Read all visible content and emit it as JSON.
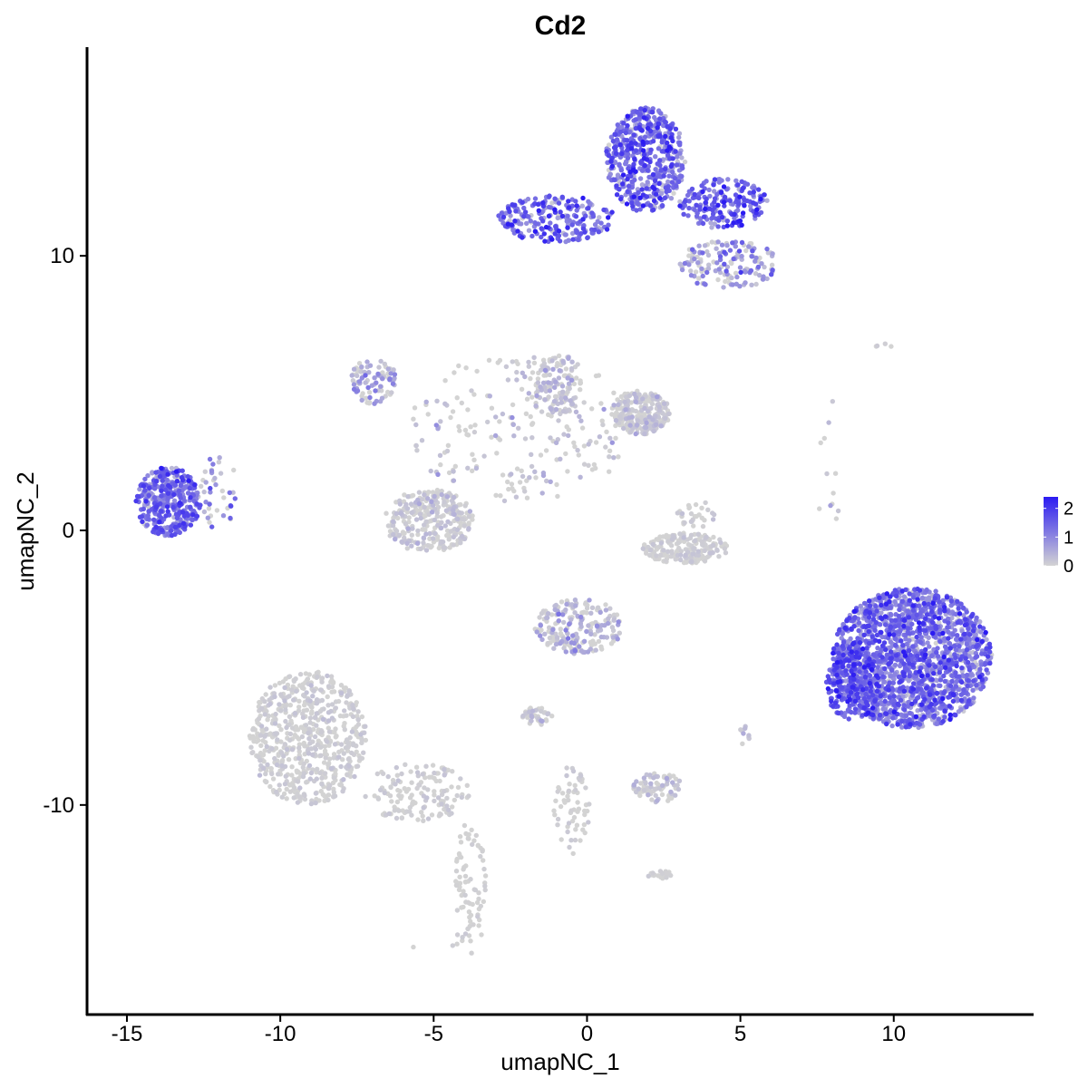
{
  "chart_data": {
    "type": "scatter",
    "title": "Cd2",
    "xlabel": "umapNC_1",
    "ylabel": "umapNC_2",
    "xlim": [
      -16.3,
      14.5
    ],
    "ylim": [
      -17.6,
      17.6
    ],
    "x_ticks": [
      -15,
      -10,
      -5,
      0,
      5,
      10
    ],
    "x_tick_labels": [
      "-15",
      "-10",
      "-5",
      "0",
      "5",
      "10"
    ],
    "y_ticks": [
      -10,
      0,
      10
    ],
    "y_tick_labels": [
      "-10",
      "0",
      "10"
    ],
    "grid": false,
    "legend": {
      "placement": "right",
      "type": "colorbar",
      "range": [
        0,
        2.4
      ],
      "ticks": [
        0,
        1,
        2
      ],
      "tick_labels": [
        "0",
        "1",
        "2"
      ],
      "colors": {
        "low": "#d3d3d3",
        "high": "#2b1bf2"
      }
    },
    "clusters": [
      {
        "x": [
          -14.7,
          -12.6
        ],
        "y": [
          -0.2,
          2.3
        ],
        "n": 380,
        "expr_mean": 1.3,
        "expr_spread": 0.5
      },
      {
        "x": [
          -12.6,
          -11.4
        ],
        "y": [
          -0.2,
          2.8
        ],
        "n": 40,
        "expr_mean": 0.5,
        "expr_spread": 0.6
      },
      {
        "x": [
          -2.9,
          0.9
        ],
        "y": [
          10.5,
          12.2
        ],
        "n": 230,
        "expr_mean": 1.3,
        "expr_spread": 0.6
      },
      {
        "x": [
          0.6,
          3.2
        ],
        "y": [
          11.6,
          15.4
        ],
        "n": 520,
        "expr_mean": 1.3,
        "expr_spread": 0.6
      },
      {
        "x": [
          3.0,
          5.9
        ],
        "y": [
          11.0,
          12.8
        ],
        "n": 200,
        "expr_mean": 1.4,
        "expr_spread": 0.6
      },
      {
        "x": [
          3.0,
          6.2
        ],
        "y": [
          8.8,
          10.6
        ],
        "n": 150,
        "expr_mean": 0.5,
        "expr_spread": 0.6
      },
      {
        "x": [
          -7.7,
          -6.2
        ],
        "y": [
          4.6,
          6.3
        ],
        "n": 90,
        "expr_mean": 0.3,
        "expr_spread": 0.5
      },
      {
        "x": [
          -5.8,
          1.4
        ],
        "y": [
          1.0,
          6.5
        ],
        "n": 220,
        "expr_mean": 0.05,
        "expr_spread": 0.3
      },
      {
        "x": [
          -1.7,
          -0.2
        ],
        "y": [
          4.2,
          6.5
        ],
        "n": 120,
        "expr_mean": 0.1,
        "expr_spread": 0.3
      },
      {
        "x": [
          0.8,
          2.7
        ],
        "y": [
          3.5,
          5.1
        ],
        "n": 260,
        "expr_mean": 0.05,
        "expr_spread": 0.2
      },
      {
        "x": [
          -6.6,
          -3.7
        ],
        "y": [
          -0.8,
          1.5
        ],
        "n": 300,
        "expr_mean": 0.05,
        "expr_spread": 0.2
      },
      {
        "x": [
          1.8,
          4.6
        ],
        "y": [
          -1.2,
          -0.1
        ],
        "n": 190,
        "expr_mean": 0.02,
        "expr_spread": 0.1
      },
      {
        "x": [
          2.9,
          4.3
        ],
        "y": [
          0.1,
          1.1
        ],
        "n": 30,
        "expr_mean": 0.02,
        "expr_spread": 0.1
      },
      {
        "x": [
          -1.7,
          1.2
        ],
        "y": [
          -4.5,
          -2.5
        ],
        "n": 210,
        "expr_mean": 0.15,
        "expr_spread": 0.4
      },
      {
        "x": [
          -11.0,
          -7.2
        ],
        "y": [
          -10.0,
          -5.1
        ],
        "n": 620,
        "expr_mean": 0.02,
        "expr_spread": 0.1
      },
      {
        "x": [
          -7.3,
          -3.8
        ],
        "y": [
          -10.6,
          -8.5
        ],
        "n": 140,
        "expr_mean": 0.02,
        "expr_spread": 0.1
      },
      {
        "x": [
          -4.3,
          -3.3
        ],
        "y": [
          -15.5,
          -10.5
        ],
        "n": 80,
        "expr_mean": 0.0,
        "expr_spread": 0.05
      },
      {
        "x": [
          -2.1,
          -1.1
        ],
        "y": [
          -7.1,
          -6.4
        ],
        "n": 40,
        "expr_mean": 0.1,
        "expr_spread": 0.3
      },
      {
        "x": [
          -1.1,
          0.1
        ],
        "y": [
          -11.8,
          -8.5
        ],
        "n": 60,
        "expr_mean": 0.02,
        "expr_spread": 0.1
      },
      {
        "x": [
          1.5,
          3.1
        ],
        "y": [
          -9.9,
          -8.8
        ],
        "n": 80,
        "expr_mean": 0.05,
        "expr_spread": 0.2
      },
      {
        "x": [
          1.9,
          2.8
        ],
        "y": [
          -12.7,
          -12.4
        ],
        "n": 20,
        "expr_mean": 0.0,
        "expr_spread": 0.05
      },
      {
        "x": [
          8.0,
          13.2
        ],
        "y": [
          -7.2,
          -2.1
        ],
        "n": 1800,
        "expr_mean": 1.15,
        "expr_spread": 0.55
      },
      {
        "x": [
          7.8,
          9.5
        ],
        "y": [
          -6.9,
          -4.4
        ],
        "n": 200,
        "expr_mean": 1.5,
        "expr_spread": 0.4
      },
      {
        "x": [
          7.5,
          8.3
        ],
        "y": [
          -0.3,
          4.8
        ],
        "n": 12,
        "expr_mean": 0.2,
        "expr_spread": 0.4
      },
      {
        "x": [
          9.3,
          10.1
        ],
        "y": [
          6.6,
          6.8
        ],
        "n": 4,
        "expr_mean": 0.0,
        "expr_spread": 0.05
      },
      {
        "x": [
          -6.2,
          -3.9
        ],
        "y": [
          -16.3,
          -14.2
        ],
        "n": 6,
        "expr_mean": 0.0,
        "expr_spread": 0.05
      },
      {
        "x": [
          4.9,
          5.3
        ],
        "y": [
          -7.8,
          -7.1
        ],
        "n": 10,
        "expr_mean": 0.1,
        "expr_spread": 0.2
      }
    ]
  }
}
